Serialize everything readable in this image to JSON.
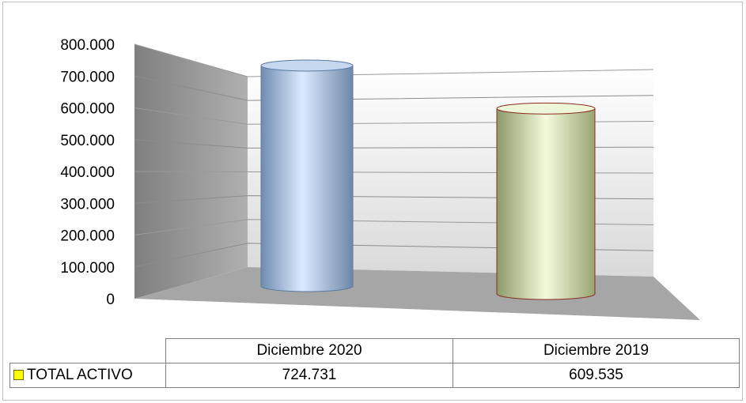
{
  "chart_data": {
    "type": "bar",
    "title": "",
    "categories": [
      "Diciembre 2020",
      "Diciembre 2019"
    ],
    "series": [
      {
        "name": "TOTAL ACTIVO",
        "values": [
          724.731,
          609.535
        ]
      }
    ],
    "ylim": [
      0,
      800000
    ],
    "yticks": [
      "800.000",
      "700.000",
      "600.000",
      "500.000",
      "400.000",
      "300.000",
      "200.000",
      "100.000",
      "0"
    ],
    "grid": true,
    "legend": "data-table",
    "colors": {
      "bar_1": "#a9c3e0",
      "bar_2": "#e4efc9",
      "swatch": "#ffff00"
    }
  },
  "table": {
    "header": [
      "Diciembre 2020",
      "Diciembre 2019"
    ],
    "series_label": "TOTAL ACTIVO",
    "values": [
      "724.731",
      "609.535"
    ]
  }
}
